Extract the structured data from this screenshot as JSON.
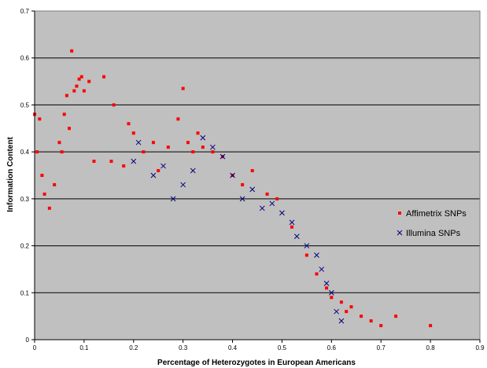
{
  "chart_data": {
    "type": "scatter",
    "title": "",
    "xlabel": "Percentage of Heterozygotes in European Americans",
    "ylabel": "Information Content",
    "xlim": [
      0,
      0.9
    ],
    "ylim": [
      0,
      0.7
    ],
    "xticks": [
      "0",
      "0.1",
      "0.2",
      "0.3",
      "0.4",
      "0.5",
      "0.6",
      "0.7",
      "0.8",
      "0.9"
    ],
    "yticks": [
      "0",
      "0.1",
      "0.2",
      "0.3",
      "0.4",
      "0.5",
      "0.6",
      "0.7"
    ],
    "grid": "horizontal",
    "plot_background": "#c0c0c0",
    "legend_position": "right",
    "series": [
      {
        "name": "Affimetrix SNPs",
        "marker": "square",
        "color": "#ff0000",
        "points": [
          [
            0.0,
            0.48
          ],
          [
            0.005,
            0.4
          ],
          [
            0.01,
            0.47
          ],
          [
            0.015,
            0.35
          ],
          [
            0.02,
            0.31
          ],
          [
            0.03,
            0.28
          ],
          [
            0.04,
            0.33
          ],
          [
            0.05,
            0.42
          ],
          [
            0.055,
            0.4
          ],
          [
            0.06,
            0.48
          ],
          [
            0.065,
            0.52
          ],
          [
            0.07,
            0.45
          ],
          [
            0.075,
            0.615
          ],
          [
            0.08,
            0.53
          ],
          [
            0.085,
            0.54
          ],
          [
            0.09,
            0.555
          ],
          [
            0.095,
            0.56
          ],
          [
            0.1,
            0.53
          ],
          [
            0.11,
            0.55
          ],
          [
            0.12,
            0.38
          ],
          [
            0.14,
            0.56
          ],
          [
            0.155,
            0.38
          ],
          [
            0.16,
            0.5
          ],
          [
            0.18,
            0.37
          ],
          [
            0.19,
            0.46
          ],
          [
            0.2,
            0.44
          ],
          [
            0.22,
            0.4
          ],
          [
            0.24,
            0.42
          ],
          [
            0.25,
            0.36
          ],
          [
            0.27,
            0.41
          ],
          [
            0.29,
            0.47
          ],
          [
            0.3,
            0.535
          ],
          [
            0.31,
            0.42
          ],
          [
            0.32,
            0.4
          ],
          [
            0.33,
            0.44
          ],
          [
            0.34,
            0.41
          ],
          [
            0.36,
            0.4
          ],
          [
            0.38,
            0.39
          ],
          [
            0.4,
            0.35
          ],
          [
            0.42,
            0.33
          ],
          [
            0.44,
            0.36
          ],
          [
            0.47,
            0.31
          ],
          [
            0.49,
            0.3
          ],
          [
            0.52,
            0.24
          ],
          [
            0.55,
            0.18
          ],
          [
            0.57,
            0.14
          ],
          [
            0.59,
            0.11
          ],
          [
            0.6,
            0.09
          ],
          [
            0.62,
            0.08
          ],
          [
            0.63,
            0.06
          ],
          [
            0.64,
            0.07
          ],
          [
            0.66,
            0.05
          ],
          [
            0.68,
            0.04
          ],
          [
            0.7,
            0.03
          ],
          [
            0.73,
            0.05
          ],
          [
            0.8,
            0.03
          ]
        ]
      },
      {
        "name": "Illumina SNPs",
        "marker": "x",
        "color": "#000080",
        "points": [
          [
            0.2,
            0.38
          ],
          [
            0.21,
            0.42
          ],
          [
            0.24,
            0.35
          ],
          [
            0.26,
            0.37
          ],
          [
            0.28,
            0.3
          ],
          [
            0.3,
            0.33
          ],
          [
            0.32,
            0.36
          ],
          [
            0.34,
            0.43
          ],
          [
            0.36,
            0.41
          ],
          [
            0.38,
            0.39
          ],
          [
            0.4,
            0.35
          ],
          [
            0.42,
            0.3
          ],
          [
            0.44,
            0.32
          ],
          [
            0.46,
            0.28
          ],
          [
            0.48,
            0.29
          ],
          [
            0.5,
            0.27
          ],
          [
            0.52,
            0.25
          ],
          [
            0.53,
            0.22
          ],
          [
            0.55,
            0.2
          ],
          [
            0.57,
            0.18
          ],
          [
            0.58,
            0.15
          ],
          [
            0.59,
            0.12
          ],
          [
            0.6,
            0.1
          ],
          [
            0.61,
            0.06
          ],
          [
            0.62,
            0.04
          ]
        ]
      }
    ]
  }
}
